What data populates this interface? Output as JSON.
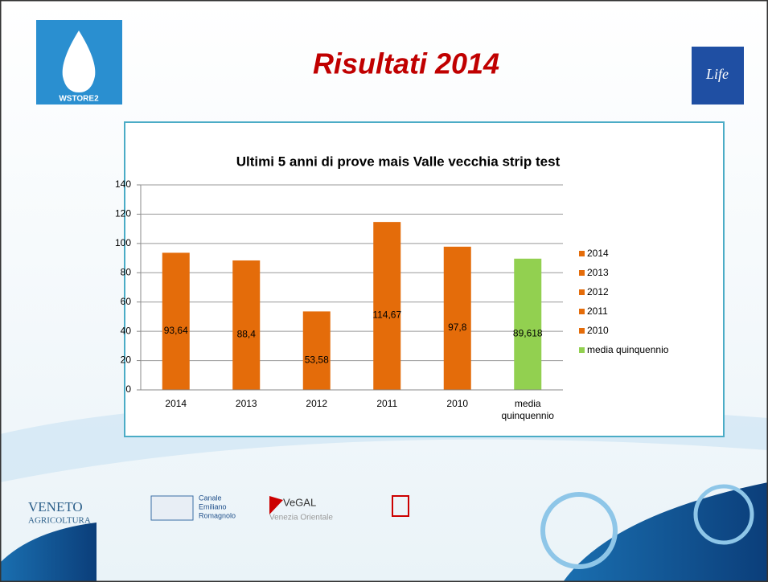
{
  "slide": {
    "title": "Risultati 2014",
    "logo_left": "WSTORE2",
    "logo_right": "Life",
    "footer": [
      "VENETO",
      "AGRICOLTURA",
      "Canale",
      "Emiliano",
      "Romagnolo",
      "VeGAL",
      "Venezia Orientale"
    ]
  },
  "chart_data": {
    "type": "bar",
    "title": "Ultimi 5 anni di prove mais Valle vecchia strip test",
    "categories": [
      "2014",
      "2013",
      "2012",
      "2011",
      "2010",
      "media quinquennio"
    ],
    "series": [
      {
        "name": "2014",
        "color": "#e46c0a",
        "values": [
          93.64,
          null,
          null,
          null,
          null,
          null
        ],
        "value_labels": [
          "93,64",
          null,
          null,
          null,
          null,
          null
        ]
      },
      {
        "name": "2013",
        "color": "#e46c0a",
        "values": [
          null,
          88.4,
          null,
          null,
          null,
          null
        ],
        "value_labels": [
          null,
          "88,4",
          null,
          null,
          null,
          null
        ]
      },
      {
        "name": "2012",
        "color": "#e46c0a",
        "values": [
          null,
          null,
          53.58,
          null,
          null,
          null
        ],
        "value_labels": [
          null,
          null,
          "53,58",
          null,
          null,
          null
        ]
      },
      {
        "name": "2011",
        "color": "#e46c0a",
        "values": [
          null,
          null,
          null,
          114.67,
          null,
          null
        ],
        "value_labels": [
          null,
          null,
          null,
          "114,67",
          null,
          null
        ]
      },
      {
        "name": "2010",
        "color": "#e46c0a",
        "values": [
          null,
          null,
          null,
          null,
          97.8,
          null
        ],
        "value_labels": [
          null,
          null,
          null,
          null,
          "97,8",
          null
        ]
      },
      {
        "name": "media quinquennio",
        "color": "#92d050",
        "values": [
          null,
          null,
          null,
          null,
          null,
          89.618
        ],
        "value_labels": [
          null,
          null,
          null,
          null,
          null,
          "89,618"
        ]
      }
    ],
    "ylim": [
      0,
      140
    ],
    "yticks": [
      0,
      20,
      40,
      60,
      80,
      100,
      120,
      140
    ],
    "grid": true,
    "legend": "right"
  }
}
